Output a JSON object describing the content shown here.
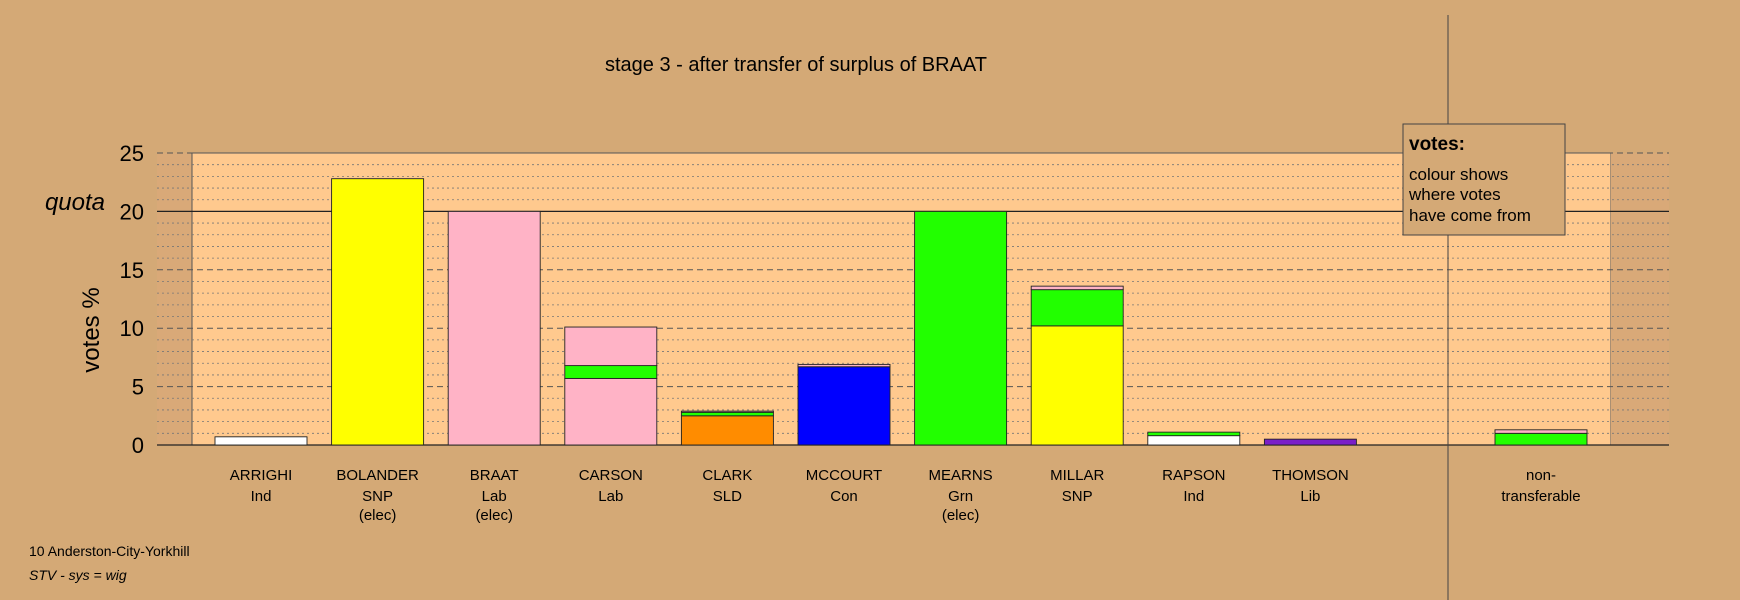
{
  "chart_data": {
    "type": "bar",
    "stacked": true,
    "title": "stage 3 - after transfer of surplus of BRAAT",
    "ylabel": "votes %",
    "ylim": [
      0,
      25
    ],
    "yticks": [
      "0",
      "5",
      "10",
      "15",
      "20",
      "25"
    ],
    "quota": {
      "label": "quota",
      "value": 20
    },
    "grid": true,
    "legend": {
      "position": "top-right",
      "title": "votes:",
      "lines": [
        "colour shows",
        "where votes",
        "have come from"
      ]
    },
    "categories": [
      {
        "name": "ARRIGHI",
        "party": "Ind",
        "status": "",
        "segments": [
          {
            "value": 0.7,
            "color": "#ffffff"
          }
        ]
      },
      {
        "name": "BOLANDER",
        "party": "SNP",
        "status": "(elec)",
        "segments": [
          {
            "value": 22.8,
            "color": "#ffff00"
          }
        ]
      },
      {
        "name": "BRAAT",
        "party": "Lab",
        "status": "(elec)",
        "segments": [
          {
            "value": 20.0,
            "color": "#ffb3c6"
          }
        ]
      },
      {
        "name": "CARSON",
        "party": "Lab",
        "status": "",
        "segments": [
          {
            "value": 5.7,
            "color": "#ffb3c6"
          },
          {
            "value": 1.1,
            "color": "#22ff00"
          },
          {
            "value": 3.3,
            "color": "#ffb3c6"
          }
        ]
      },
      {
        "name": "CLARK",
        "party": "SLD",
        "status": "",
        "segments": [
          {
            "value": 2.5,
            "color": "#ff8c00"
          },
          {
            "value": 0.3,
            "color": "#22ff00"
          },
          {
            "value": 0.1,
            "color": "#ffb3c6"
          }
        ]
      },
      {
        "name": "MCCOURT",
        "party": "Con",
        "status": "",
        "segments": [
          {
            "value": 6.7,
            "color": "#0000ff"
          },
          {
            "value": 0.2,
            "color": "#ffb3c6"
          }
        ]
      },
      {
        "name": "MEARNS",
        "party": "Grn",
        "status": "(elec)",
        "segments": [
          {
            "value": 20.0,
            "color": "#22ff00"
          }
        ]
      },
      {
        "name": "MILLAR",
        "party": "SNP",
        "status": "",
        "segments": [
          {
            "value": 10.2,
            "color": "#ffff00"
          },
          {
            "value": 3.1,
            "color": "#22ff00"
          },
          {
            "value": 0.3,
            "color": "#ffb3c6"
          }
        ]
      },
      {
        "name": "RAPSON",
        "party": "Ind",
        "status": "",
        "segments": [
          {
            "value": 0.8,
            "color": "#ffffff"
          },
          {
            "value": 0.3,
            "color": "#22ff00"
          }
        ]
      },
      {
        "name": "THOMSON",
        "party": "Lib",
        "status": "",
        "segments": [
          {
            "value": 0.5,
            "color": "#7a1fc8"
          }
        ]
      }
    ],
    "nontransferable": {
      "label_line1": "non-",
      "label_line2": "transferable",
      "segments": [
        {
          "value": 1.0,
          "color": "#22ff00"
        },
        {
          "value": 0.3,
          "color": "#ffb3c6"
        }
      ]
    }
  },
  "footer": {
    "ward": "10 Anderston-City-Yorkhill",
    "system": "STV - sys = wig"
  },
  "colors": {
    "background": "#d4a976",
    "plot_area": "#ffc98e",
    "side_area": "#d9a978"
  }
}
